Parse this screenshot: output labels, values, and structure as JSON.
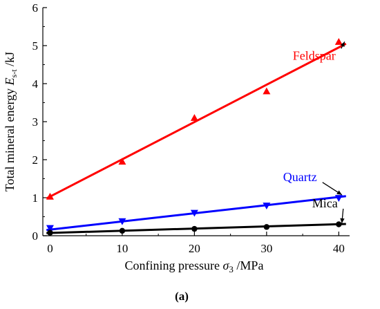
{
  "chart_data": {
    "type": "scatter",
    "xlabel": "Confining pressure σ₃ /MPa",
    "xlabel_parts": {
      "pre": "Confining pressure ",
      "symbol": "σ",
      "sub": "3",
      "post": " /MPa"
    },
    "ylabel": "Total mineral energy Es-t /kJ",
    "ylabel_parts": {
      "pre": "Total mineral energy ",
      "symbol": "E",
      "sub": "s-t",
      "post": " /kJ"
    },
    "panel_label": "(a)",
    "xlim": [
      -1,
      41.5
    ],
    "ylim": [
      0,
      6
    ],
    "x_ticks": [
      0,
      10,
      20,
      30,
      40
    ],
    "y_ticks": [
      0,
      1,
      2,
      3,
      4,
      5,
      6
    ],
    "grid": false,
    "series": [
      {
        "name": "Feldspar",
        "color": "#ff0000",
        "marker": "triangle-up",
        "x": [
          0,
          10,
          20,
          30,
          40
        ],
        "y": [
          1.03,
          1.95,
          3.1,
          3.8,
          5.1
        ],
        "fit": {
          "x": [
            -0.5,
            41
          ],
          "y": [
            0.98,
            5.05
          ]
        }
      },
      {
        "name": "Quartz",
        "color": "#0000ff",
        "marker": "triangle-down",
        "x": [
          0,
          10,
          20,
          30,
          40
        ],
        "y": [
          0.2,
          0.38,
          0.6,
          0.79,
          0.99
        ],
        "fit": {
          "x": [
            -0.5,
            41
          ],
          "y": [
            0.15,
            1.04
          ]
        }
      },
      {
        "name": "Mica",
        "color": "#000000",
        "marker": "circle",
        "x": [
          0,
          10,
          20,
          30,
          40
        ],
        "y": [
          0.08,
          0.13,
          0.18,
          0.23,
          0.3
        ],
        "fit": {
          "x": [
            -0.5,
            41
          ],
          "y": [
            0.07,
            0.31
          ]
        }
      }
    ]
  }
}
